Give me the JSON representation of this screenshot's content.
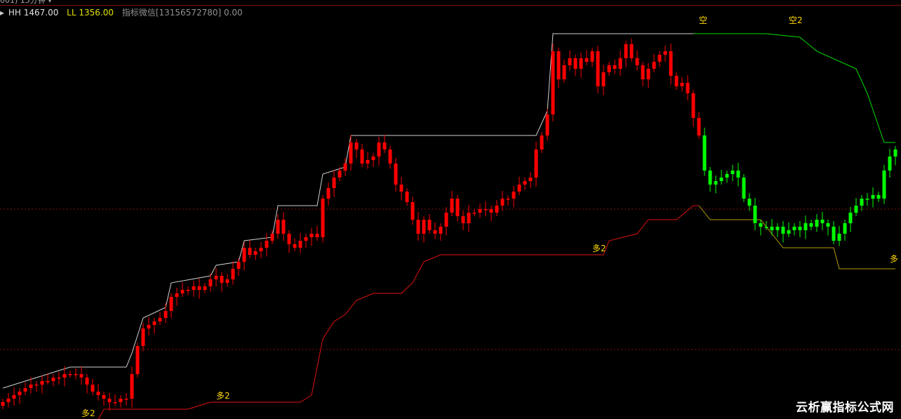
{
  "header": {
    "title_fragment": "001)  15分钟 ▾"
  },
  "legend": {
    "arrow": "▸",
    "hh_label": "HH 1467.00",
    "ll_label": "LL 1356.00",
    "info_label": "指标微信[13156572780] 0.00"
  },
  "watermark": "云析赢指标公式网",
  "colors": {
    "up": "#ff0000",
    "down": "#00ff00",
    "upper_line": "#d0d0d0",
    "upper_line_down": "#00e000",
    "lower_line": "#e01010",
    "lower_line_down": "#b0a000",
    "label": "#ffd700",
    "grid_dash": "#8a1010",
    "hh": "#e0e0e0",
    "ll": "#e0e000",
    "info": "#909090"
  },
  "chart_data": {
    "type": "candlestick",
    "ylim": [
      1356,
      1470
    ],
    "down_trend_from_index": 125,
    "closes": [
      1362,
      1363,
      1364,
      1365,
      1366,
      1367,
      1367,
      1368,
      1368,
      1369,
      1369,
      1370,
      1370,
      1370,
      1369,
      1367,
      1365,
      1364,
      1363,
      1362,
      1362,
      1363,
      1363,
      1370,
      1378,
      1383,
      1384,
      1385,
      1386,
      1388,
      1392,
      1393,
      1394,
      1394,
      1395,
      1394,
      1395,
      1397,
      1398,
      1396,
      1397,
      1400,
      1402,
      1406,
      1404,
      1405,
      1406,
      1408,
      1410,
      1414,
      1410,
      1407,
      1406,
      1408,
      1409,
      1410,
      1409,
      1420,
      1423,
      1426,
      1428,
      1430,
      1436,
      1434,
      1430,
      1431,
      1432,
      1436,
      1434,
      1430,
      1424,
      1422,
      1419,
      1414,
      1410,
      1414,
      1411,
      1410,
      1412,
      1416,
      1420,
      1415,
      1413,
      1416,
      1416,
      1417,
      1417,
      1416,
      1418,
      1420,
      1420,
      1422,
      1424,
      1425,
      1426,
      1434,
      1438,
      1444,
      1462,
      1454,
      1458,
      1460,
      1457,
      1460,
      1459,
      1462,
      1452,
      1456,
      1458,
      1457,
      1460,
      1464,
      1460,
      1458,
      1454,
      1457,
      1459,
      1461,
      1462,
      1455,
      1452,
      1453,
      1450,
      1443,
      1438,
      1428,
      1424,
      1425,
      1426,
      1427,
      1428,
      1426,
      1420,
      1418,
      1413,
      1412,
      1412,
      1411,
      1412,
      1410,
      1411,
      1412,
      1411,
      1413,
      1412,
      1414,
      1413,
      1412,
      1408,
      1410,
      1413,
      1416,
      1418,
      1420,
      1420,
      1421,
      1420,
      1428,
      1432,
      1434
    ],
    "upper_line": [
      [
        0,
        1366
      ],
      [
        4,
        1368
      ],
      [
        10,
        1371
      ],
      [
        12,
        1372
      ],
      [
        22,
        1372
      ],
      [
        23,
        1376
      ],
      [
        25,
        1386
      ],
      [
        29,
        1389
      ],
      [
        30,
        1396
      ],
      [
        37,
        1398
      ],
      [
        38,
        1401
      ],
      [
        42,
        1402
      ],
      [
        43,
        1408
      ],
      [
        48,
        1409
      ],
      [
        49,
        1418
      ],
      [
        56,
        1418
      ],
      [
        57,
        1427
      ],
      [
        61,
        1429
      ],
      [
        62,
        1438
      ],
      [
        95,
        1438
      ],
      [
        97,
        1445
      ],
      [
        98,
        1467
      ],
      [
        110,
        1467
      ],
      [
        123,
        1467
      ]
    ],
    "upper_line_down": [
      [
        123,
        1467
      ],
      [
        136,
        1467
      ],
      [
        142,
        1466
      ],
      [
        145,
        1462
      ],
      [
        152,
        1457
      ],
      [
        154,
        1450
      ],
      [
        157,
        1436
      ],
      [
        159,
        1436
      ]
    ],
    "lower_line": [
      [
        17,
        1357
      ],
      [
        18,
        1360
      ],
      [
        33,
        1360
      ],
      [
        37,
        1362
      ],
      [
        53,
        1362
      ],
      [
        55,
        1364
      ],
      [
        57,
        1380
      ],
      [
        59,
        1385
      ],
      [
        61,
        1387
      ],
      [
        63,
        1391
      ],
      [
        66,
        1393
      ],
      [
        71,
        1393
      ],
      [
        73,
        1396
      ],
      [
        75,
        1402
      ],
      [
        78,
        1404
      ],
      [
        107,
        1404
      ],
      [
        108,
        1408
      ],
      [
        113,
        1410
      ],
      [
        115,
        1414
      ],
      [
        120,
        1414
      ],
      [
        123,
        1418
      ],
      [
        124,
        1418
      ]
    ],
    "lower_line_down": [
      [
        124,
        1418
      ],
      [
        126,
        1414
      ],
      [
        135,
        1414
      ],
      [
        139,
        1406
      ],
      [
        148,
        1406
      ],
      [
        149,
        1400
      ],
      [
        159,
        1400
      ]
    ],
    "dashed_levels": [
      1417,
      1377
    ],
    "annotations": [
      {
        "text": "多2",
        "index": 39,
        "price": 1363
      },
      {
        "text": "多2",
        "index": 15,
        "price": 1358
      },
      {
        "text": "多2",
        "index": 106,
        "price": 1405
      },
      {
        "text": "多",
        "index": 159,
        "price": 1402
      },
      {
        "text": "空",
        "index": 125,
        "price": 1470
      },
      {
        "text": "空2",
        "index": 141,
        "price": 1470
      }
    ]
  }
}
